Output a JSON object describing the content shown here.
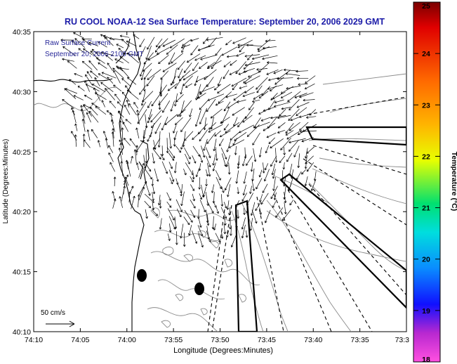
{
  "title": "RU COOL  NOAA-12  Sea Surface Temperature:  September 20, 2006 2029 GMT",
  "inset_label_1": "Raw Surface Current",
  "inset_label_2": "September 20, 2006 2100 GMT",
  "scale_label": "50 cm/s",
  "x_axis": {
    "label": "Longitude (Degrees:Minutes)",
    "ticks": [
      "74:10",
      "74:05",
      "74:00",
      "73:55",
      "73:50",
      "73:45",
      "73:40",
      "73:35",
      "73:3"
    ]
  },
  "y_axis": {
    "label": "Latitude (Degrees:Minutes)",
    "ticks": [
      "40:35",
      "40:30",
      "40:25",
      "40:20",
      "40:15",
      "40:10"
    ]
  },
  "colorbar": {
    "label": "Temperature (°C)",
    "ticks": [
      "25",
      "24",
      "23",
      "22",
      "21",
      "20",
      "19",
      "18"
    ],
    "min": 18,
    "max": 25
  },
  "colors": {
    "title": "#1c1ca8",
    "inset": "#2a2a9a",
    "map_lines": "#000000",
    "contours": "#8a8a8a"
  }
}
